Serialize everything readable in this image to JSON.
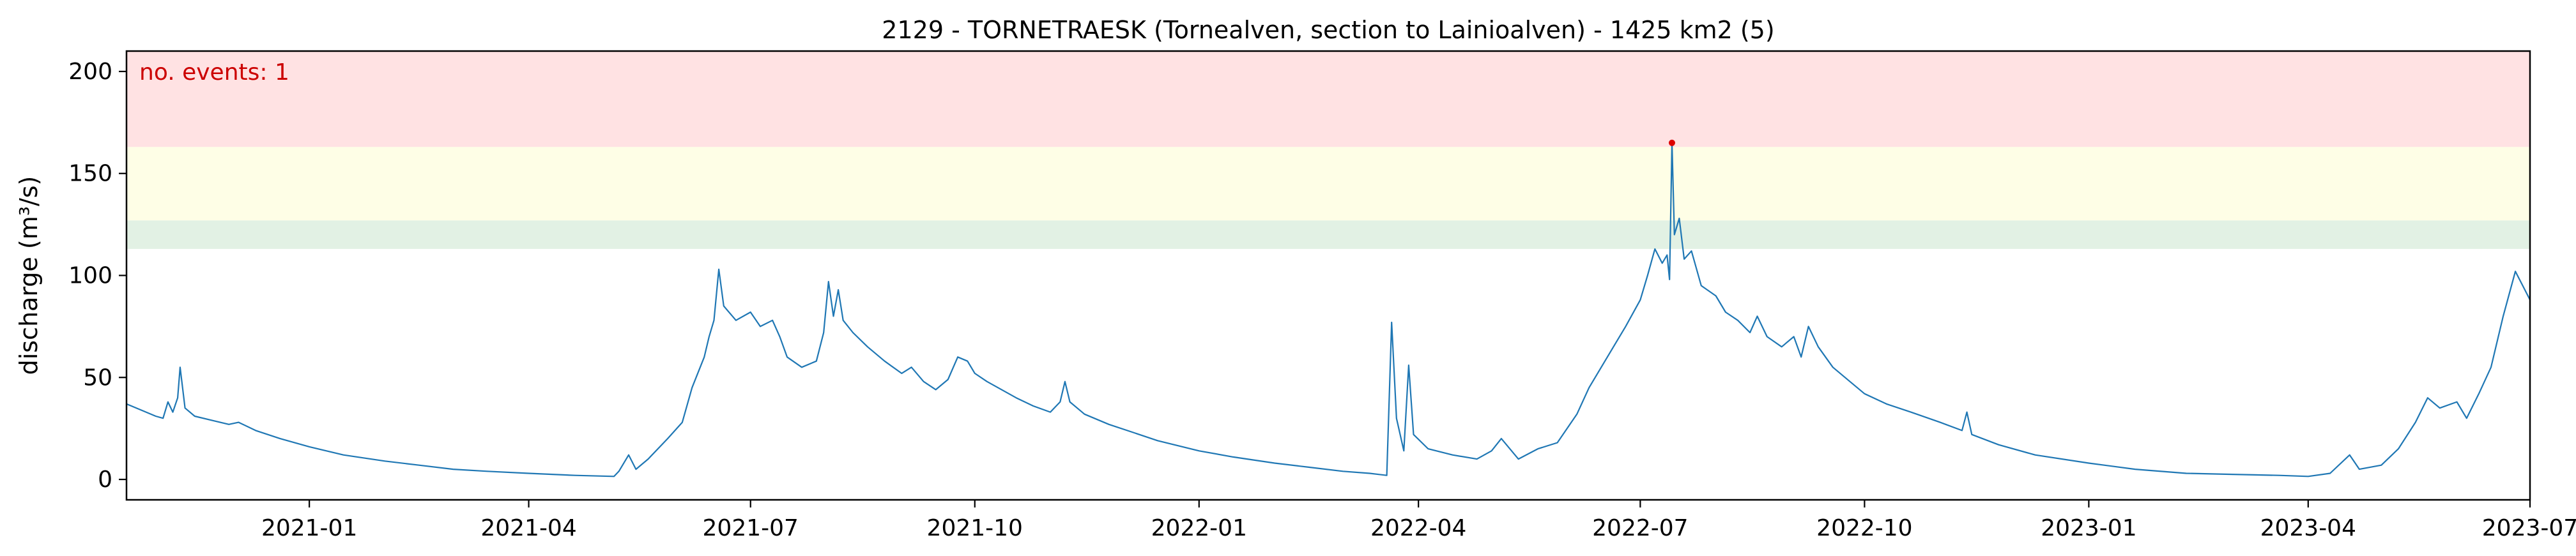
{
  "chart_data": {
    "type": "line",
    "title": "2129 - TORNETRAESK (Tornealven, section to Lainioalven) - 1425 km2 (5)",
    "xlabel": "",
    "ylabel": "discharge (m³/s)",
    "xlim": [
      "2020-10-18",
      "2023-07-01"
    ],
    "ylim": [
      -10,
      210
    ],
    "x_ticks": [
      "2021-01-01",
      "2021-04-01",
      "2021-07-01",
      "2021-10-01",
      "2022-01-01",
      "2022-04-01",
      "2022-07-01",
      "2022-10-01",
      "2023-01-01",
      "2023-04-01",
      "2023-07-01"
    ],
    "x_tick_labels": [
      "2021-01",
      "2021-04",
      "2021-07",
      "2021-10",
      "2022-01",
      "2022-04",
      "2022-07",
      "2022-10",
      "2023-01",
      "2023-04",
      "2023-07"
    ],
    "y_ticks": [
      0,
      50,
      100,
      150,
      200
    ],
    "y_tick_labels": [
      "0",
      "50",
      "100",
      "150",
      "200"
    ],
    "grid": false,
    "threshold_bands": [
      {
        "from": 113,
        "to": 127,
        "color": "#e2f1e4"
      },
      {
        "from": 127,
        "to": 163,
        "color": "#fefee6"
      },
      {
        "from": 163,
        "to": 210,
        "color": "#ffe2e3"
      }
    ],
    "annotation": {
      "text": "no. events: 1",
      "color": "#cc0000"
    },
    "event_points": [
      {
        "x": "2022-07-14",
        "y": 165
      }
    ],
    "series": [
      {
        "color": "#1f77b4",
        "points": [
          [
            "2020-10-18",
            37
          ],
          [
            "2020-10-24",
            34
          ],
          [
            "2020-10-30",
            31
          ],
          [
            "2020-11-02",
            30
          ],
          [
            "2020-11-04",
            38
          ],
          [
            "2020-11-06",
            33
          ],
          [
            "2020-11-08",
            40
          ],
          [
            "2020-11-09",
            55
          ],
          [
            "2020-11-11",
            35
          ],
          [
            "2020-11-15",
            31
          ],
          [
            "2020-11-22",
            29
          ],
          [
            "2020-11-29",
            27
          ],
          [
            "2020-12-03",
            28
          ],
          [
            "2020-12-10",
            24
          ],
          [
            "2020-12-20",
            20
          ],
          [
            "2021-01-01",
            16
          ],
          [
            "2021-01-15",
            12
          ],
          [
            "2021-02-01",
            9
          ],
          [
            "2021-02-15",
            7
          ],
          [
            "2021-03-01",
            5
          ],
          [
            "2021-03-15",
            4
          ],
          [
            "2021-04-01",
            3
          ],
          [
            "2021-04-20",
            2
          ],
          [
            "2021-05-06",
            1.5
          ],
          [
            "2021-05-08",
            4
          ],
          [
            "2021-05-12",
            12
          ],
          [
            "2021-05-15",
            5
          ],
          [
            "2021-05-20",
            10
          ],
          [
            "2021-05-28",
            20
          ],
          [
            "2021-06-03",
            28
          ],
          [
            "2021-06-07",
            45
          ],
          [
            "2021-06-12",
            60
          ],
          [
            "2021-06-14",
            70
          ],
          [
            "2021-06-16",
            78
          ],
          [
            "2021-06-18",
            103
          ],
          [
            "2021-06-20",
            85
          ],
          [
            "2021-06-25",
            78
          ],
          [
            "2021-07-01",
            82
          ],
          [
            "2021-07-05",
            75
          ],
          [
            "2021-07-10",
            78
          ],
          [
            "2021-07-13",
            70
          ],
          [
            "2021-07-16",
            60
          ],
          [
            "2021-07-22",
            55
          ],
          [
            "2021-07-28",
            58
          ],
          [
            "2021-07-31",
            72
          ],
          [
            "2021-08-02",
            97
          ],
          [
            "2021-08-04",
            80
          ],
          [
            "2021-08-06",
            93
          ],
          [
            "2021-08-08",
            78
          ],
          [
            "2021-08-12",
            72
          ],
          [
            "2021-08-18",
            65
          ],
          [
            "2021-08-25",
            58
          ],
          [
            "2021-09-01",
            52
          ],
          [
            "2021-09-05",
            55
          ],
          [
            "2021-09-10",
            48
          ],
          [
            "2021-09-15",
            44
          ],
          [
            "2021-09-20",
            49
          ],
          [
            "2021-09-24",
            60
          ],
          [
            "2021-09-28",
            58
          ],
          [
            "2021-10-01",
            52
          ],
          [
            "2021-10-06",
            48
          ],
          [
            "2021-10-12",
            44
          ],
          [
            "2021-10-18",
            40
          ],
          [
            "2021-10-25",
            36
          ],
          [
            "2021-11-01",
            33
          ],
          [
            "2021-11-05",
            38
          ],
          [
            "2021-11-07",
            48
          ],
          [
            "2021-11-09",
            38
          ],
          [
            "2021-11-15",
            32
          ],
          [
            "2021-11-25",
            27
          ],
          [
            "2021-12-05",
            23
          ],
          [
            "2021-12-15",
            19
          ],
          [
            "2022-01-01",
            14
          ],
          [
            "2022-01-15",
            11
          ],
          [
            "2022-02-01",
            8
          ],
          [
            "2022-02-15",
            6
          ],
          [
            "2022-03-01",
            4
          ],
          [
            "2022-03-12",
            3
          ],
          [
            "2022-03-19",
            2
          ],
          [
            "2022-03-21",
            77
          ],
          [
            "2022-03-23",
            30
          ],
          [
            "2022-03-26",
            14
          ],
          [
            "2022-03-28",
            56
          ],
          [
            "2022-03-30",
            22
          ],
          [
            "2022-04-05",
            15
          ],
          [
            "2022-04-15",
            12
          ],
          [
            "2022-04-25",
            10
          ],
          [
            "2022-05-01",
            14
          ],
          [
            "2022-05-05",
            20
          ],
          [
            "2022-05-12",
            10
          ],
          [
            "2022-05-20",
            15
          ],
          [
            "2022-05-28",
            18
          ],
          [
            "2022-06-05",
            32
          ],
          [
            "2022-06-10",
            45
          ],
          [
            "2022-06-15",
            55
          ],
          [
            "2022-06-20",
            65
          ],
          [
            "2022-06-25",
            75
          ],
          [
            "2022-07-01",
            88
          ],
          [
            "2022-07-04",
            100
          ],
          [
            "2022-07-07",
            113
          ],
          [
            "2022-07-10",
            106
          ],
          [
            "2022-07-12",
            110
          ],
          [
            "2022-07-13",
            98
          ],
          [
            "2022-07-14",
            165
          ],
          [
            "2022-07-15",
            120
          ],
          [
            "2022-07-17",
            128
          ],
          [
            "2022-07-19",
            108
          ],
          [
            "2022-07-22",
            112
          ],
          [
            "2022-07-26",
            95
          ],
          [
            "2022-08-01",
            90
          ],
          [
            "2022-08-05",
            82
          ],
          [
            "2022-08-10",
            78
          ],
          [
            "2022-08-15",
            72
          ],
          [
            "2022-08-18",
            80
          ],
          [
            "2022-08-22",
            70
          ],
          [
            "2022-08-28",
            65
          ],
          [
            "2022-09-02",
            70
          ],
          [
            "2022-09-05",
            60
          ],
          [
            "2022-09-08",
            75
          ],
          [
            "2022-09-12",
            65
          ],
          [
            "2022-09-18",
            55
          ],
          [
            "2022-09-25",
            48
          ],
          [
            "2022-10-01",
            42
          ],
          [
            "2022-10-10",
            37
          ],
          [
            "2022-10-20",
            33
          ],
          [
            "2022-11-01",
            28
          ],
          [
            "2022-11-10",
            24
          ],
          [
            "2022-11-12",
            33
          ],
          [
            "2022-11-14",
            22
          ],
          [
            "2022-11-25",
            17
          ],
          [
            "2022-12-10",
            12
          ],
          [
            "2023-01-01",
            8
          ],
          [
            "2023-01-20",
            5
          ],
          [
            "2023-02-10",
            3
          ],
          [
            "2023-03-01",
            2.5
          ],
          [
            "2023-03-20",
            2
          ],
          [
            "2023-04-01",
            1.5
          ],
          [
            "2023-04-10",
            3
          ],
          [
            "2023-04-18",
            12
          ],
          [
            "2023-04-22",
            5
          ],
          [
            "2023-05-01",
            7
          ],
          [
            "2023-05-08",
            15
          ],
          [
            "2023-05-15",
            28
          ],
          [
            "2023-05-20",
            40
          ],
          [
            "2023-05-25",
            35
          ],
          [
            "2023-06-01",
            38
          ],
          [
            "2023-06-05",
            30
          ],
          [
            "2023-06-10",
            42
          ],
          [
            "2023-06-15",
            55
          ],
          [
            "2023-06-20",
            80
          ],
          [
            "2023-06-25",
            102
          ],
          [
            "2023-06-28",
            95
          ],
          [
            "2023-07-01",
            88
          ]
        ]
      }
    ]
  }
}
